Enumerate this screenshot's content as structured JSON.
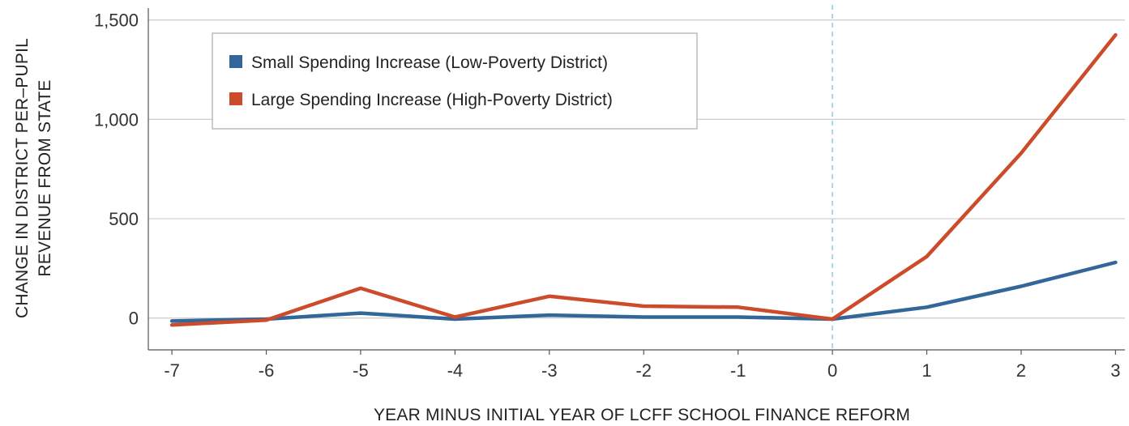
{
  "chart_data": {
    "type": "line",
    "x": [
      -7,
      -6,
      -5,
      -4,
      -3,
      -2,
      -1,
      0,
      1,
      2,
      3
    ],
    "x_tick_labels": [
      "-7",
      "-6",
      "-5",
      "-4",
      "-3",
      "-2",
      "-1",
      "0",
      "1",
      "2",
      "3"
    ],
    "y_ticks": [
      0,
      500,
      1000,
      1500
    ],
    "y_tick_labels": [
      "0",
      "500",
      "1,000",
      "1,500"
    ],
    "ylim": [
      -160,
      1560
    ],
    "xlim": [
      -7.25,
      3.1
    ],
    "xlabel": "YEAR MINUS INITIAL YEAR OF LCFF SCHOOL FINANCE REFORM",
    "ylabel_lines": [
      "CHANGE IN DISTRICT PER–PUPIL",
      "REVENUE FROM STATE"
    ],
    "grid": "horizontal",
    "legend_position": "top-left",
    "reference_line_x": 0,
    "reference_line_color": "#a8d4e8",
    "series": [
      {
        "name": "Small Spending Increase (Low-Poverty District)",
        "color": "#336699",
        "values": [
          -15,
          -5,
          25,
          -5,
          15,
          5,
          5,
          -5,
          55,
          160,
          280
        ]
      },
      {
        "name": "Large Spending Increase (High-Poverty District)",
        "color": "#cc4b2a",
        "values": [
          -35,
          -10,
          150,
          5,
          110,
          60,
          55,
          -5,
          310,
          830,
          1425
        ]
      }
    ]
  }
}
